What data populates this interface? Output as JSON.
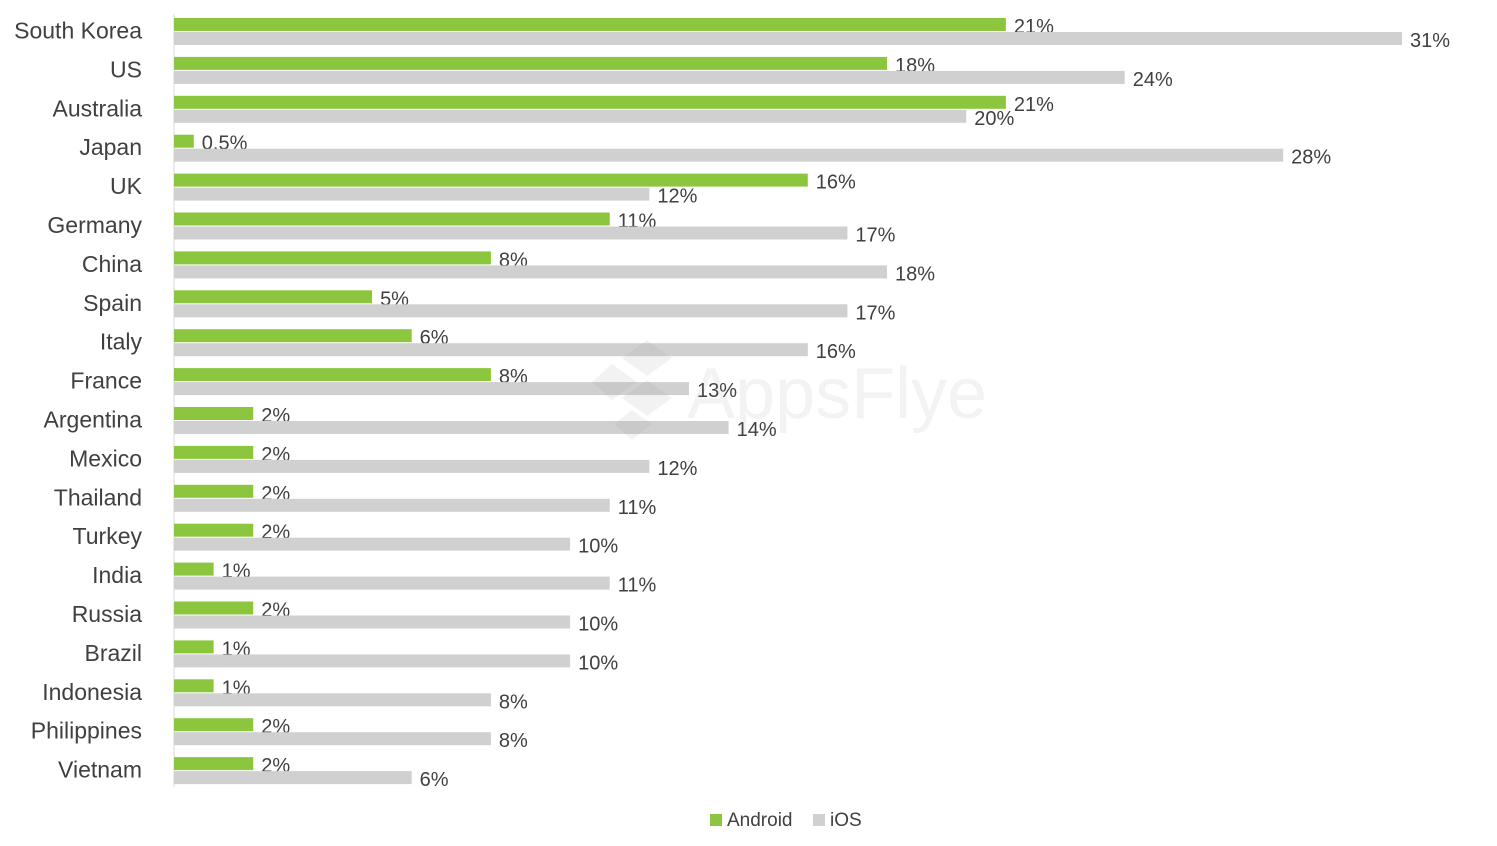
{
  "brand": {
    "watermark_text": "AppsFlyer"
  },
  "colors": {
    "android": "#8CC63F",
    "ios": "#D0D0D0",
    "label": "#404040",
    "axis": "#D9D9D9"
  },
  "legend": {
    "android": "Android",
    "ios": "iOS"
  },
  "chart_data": {
    "type": "bar",
    "orientation": "horizontal",
    "categories": [
      "South Korea",
      "US",
      "Australia",
      "Japan",
      "UK",
      "Germany",
      "China",
      "Spain",
      "Italy",
      "France",
      "Argentina",
      "Mexico",
      "Thailand",
      "Turkey",
      "India",
      "Russia",
      "Brazil",
      "Indonesia",
      "Philippines",
      "Vietnam"
    ],
    "series": [
      {
        "name": "Android",
        "values": [
          21,
          18,
          21,
          0.5,
          16,
          11,
          8,
          5,
          6,
          8,
          2,
          2,
          2,
          2,
          1,
          2,
          1,
          1,
          2,
          2
        ],
        "labels": [
          "21%",
          "18%",
          "21%",
          "0.5%",
          "16%",
          "11%",
          "8%",
          "5%",
          "6%",
          "8%",
          "2%",
          "2%",
          "2%",
          "2%",
          "1%",
          "2%",
          "1%",
          "1%",
          "2%",
          "2%"
        ]
      },
      {
        "name": "iOS",
        "values": [
          31,
          24,
          20,
          28,
          12,
          17,
          18,
          17,
          16,
          13,
          14,
          12,
          11,
          10,
          11,
          10,
          10,
          8,
          8,
          6
        ],
        "labels": [
          "31%",
          "24%",
          "20%",
          "28%",
          "12%",
          "17%",
          "18%",
          "17%",
          "16%",
          "13%",
          "14%",
          "12%",
          "11%",
          "10%",
          "11%",
          "10%",
          "10%",
          "8%",
          "8%",
          "6%"
        ]
      }
    ],
    "xlim": [
      0,
      31
    ],
    "legend_position": "bottom",
    "grid": false,
    "title": "",
    "xlabel": "",
    "ylabel": ""
  }
}
